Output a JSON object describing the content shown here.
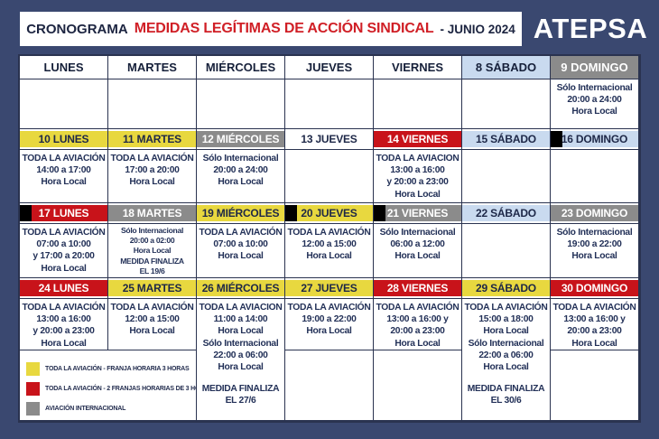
{
  "header": {
    "title_prefix": "CRONOGRAMA",
    "title_main": "MEDIDAS LEGÍTIMAS DE ACCIÓN SINDICAL",
    "title_suffix": "- JUNIO 2024",
    "brand": "ATEPSA"
  },
  "colors": {
    "frame_navy": "#3a4870",
    "grid_line": "#2a3350",
    "yellow": "#e8d83f",
    "red": "#c8131a",
    "gray": "#8b8b8b",
    "lightblue": "#c9daef",
    "black_marker": "#000000",
    "title_red": "#d01f26",
    "body_text_navy": "#233158"
  },
  "calendar": {
    "rows": [
      {
        "kind": "dayheader",
        "cells": [
          {
            "label": "LUNES",
            "color": "white"
          },
          {
            "label": "MARTES",
            "color": "white"
          },
          {
            "label": "MIÉRCOLES",
            "color": "white"
          },
          {
            "label": "JUEVES",
            "color": "white"
          },
          {
            "label": "VIERNES",
            "color": "white"
          },
          {
            "label": "8 SÁBADO",
            "color": "lightblue"
          },
          {
            "label": "9 DOMINGO",
            "color": "gray"
          }
        ]
      },
      {
        "kind": "body",
        "cells": [
          {
            "lines": []
          },
          {
            "lines": []
          },
          {
            "lines": []
          },
          {
            "lines": []
          },
          {
            "lines": []
          },
          {
            "lines": []
          },
          {
            "lines": [
              "Sólo Internacional",
              "20:00 a 24:00",
              "Hora Local"
            ]
          }
        ]
      },
      {
        "kind": "weekheader",
        "cells": [
          {
            "label": "10 LUNES",
            "color": "yellow"
          },
          {
            "label": "11 MARTES",
            "color": "yellow"
          },
          {
            "label": "12 MIÉRCOLES",
            "color": "gray"
          },
          {
            "label": "13 JUEVES",
            "color": "white"
          },
          {
            "label": "14 VIERNES",
            "color": "red"
          },
          {
            "label": "15 SÁBADO",
            "color": "lightblue"
          },
          {
            "label": "16 DOMINGO",
            "color": "lightblue",
            "marker": true
          }
        ]
      },
      {
        "kind": "body",
        "cells": [
          {
            "lines": [
              "TODA LA AVIACIÓN",
              "14:00 a 17:00",
              "Hora Local"
            ]
          },
          {
            "lines": [
              "TODA LA AVIACIÓN",
              "17:00 a 20:00",
              "Hora Local"
            ]
          },
          {
            "lines": [
              "Sólo Internacional",
              "20:00 a 24:00",
              "Hora Local"
            ]
          },
          {
            "lines": []
          },
          {
            "lines": [
              "TODA LA AVIACION",
              "13:00 a 16:00",
              "y 20:00 a 23:00",
              "Hora Local"
            ]
          },
          {
            "lines": []
          },
          {
            "lines": []
          }
        ]
      },
      {
        "kind": "weekheader",
        "cells": [
          {
            "label": "17 LUNES",
            "color": "red",
            "marker": true
          },
          {
            "label": "18 MARTES",
            "color": "gray"
          },
          {
            "label": "19 MIÉRCOLES",
            "color": "yellow"
          },
          {
            "label": "20 JUEVES",
            "color": "yellow",
            "marker": true
          },
          {
            "label": "21 VIERNES",
            "color": "gray",
            "marker": true
          },
          {
            "label": "22 SÁBADO",
            "color": "lightblue"
          },
          {
            "label": "23 DOMINGO",
            "color": "gray"
          }
        ]
      },
      {
        "kind": "body",
        "cells": [
          {
            "lines": [
              "TODA LA AVIACIÓN",
              "07:00 a 10:00",
              "y 17:00 a 20:00",
              "Hora Local"
            ]
          },
          {
            "lines": [
              "Sólo Internacional",
              "20:00 a 02:00",
              "Hora Local",
              "MEDIDA FINALIZA",
              "EL 19/6"
            ],
            "small": true
          },
          {
            "lines": [
              "TODA LA AVIACIÓN",
              "07:00 a 10:00",
              "Hora Local"
            ]
          },
          {
            "lines": [
              "TODA LA AVIACIÓN",
              "12:00 a 15:00",
              "Hora Local"
            ]
          },
          {
            "lines": [
              "Sólo Internacional",
              "06:00 a 12:00",
              "Hora Local"
            ]
          },
          {
            "lines": []
          },
          {
            "lines": [
              "Sólo Internacional",
              "19:00 a 22:00",
              "Hora Local"
            ]
          }
        ]
      },
      {
        "kind": "weekheader",
        "cells": [
          {
            "label": "24 LUNES",
            "color": "red"
          },
          {
            "label": "25 MARTES",
            "color": "yellow"
          },
          {
            "label": "26 MIÉRCOLES",
            "color": "yellow"
          },
          {
            "label": "27 JUEVES",
            "color": "yellow"
          },
          {
            "label": "28 VIERNES",
            "color": "red"
          },
          {
            "label": "29 SÁBADO",
            "color": "yellow"
          },
          {
            "label": "30 DOMINGO",
            "color": "red"
          }
        ]
      },
      {
        "kind": "body",
        "cells": [
          {
            "lines": [
              "TODA LA AVIACIÓN",
              "13:00 a 16:00",
              "y 20:00 a 23:00",
              "Hora Local"
            ]
          },
          {
            "lines": [
              "TODA LA AVIACIÓN",
              "12:00 a 15:00",
              "Hora Local"
            ]
          },
          {
            "lines": [
              "TODA LA AVIACION",
              "11:00 a 14:00",
              "Hora Local",
              "Sólo Internacional",
              "22:00 a 06:00",
              "Hora Local",
              "",
              "MEDIDA FINALIZA",
              "EL 27/6"
            ],
            "tall": true
          },
          {
            "lines": [
              "TODA LA AVIACIÓN",
              "19:00 a 22:00",
              "Hora Local"
            ]
          },
          {
            "lines": [
              "TODA LA AVIACIÓN",
              "13:00 a 16:00 y",
              "20:00 a 23:00",
              "Hora Local"
            ]
          },
          {
            "lines": [
              "TODA LA AVIACIÓN",
              "15:00 a 18:00",
              "Hora Local",
              "Sólo Internacional",
              "22:00 a 06:00",
              "Hora Local",
              "",
              "MEDIDA FINALIZA",
              "EL 30/6"
            ],
            "tall": true
          },
          {
            "lines": [
              "TODA LA AVIACIÓN",
              "13:00 a 16:00 y",
              "20:00 a 23:00",
              "Hora Local"
            ]
          }
        ]
      }
    ]
  },
  "legend": {
    "items": [
      {
        "color": "yellow",
        "label": "TODA LA AVIACIÓN - FRANJA HORARIA 3 HORAS"
      },
      {
        "color": "red",
        "label": "TODA LA AVIACIÓN - 2 FRANJAS HORARIAS DE 3 HORAS"
      },
      {
        "color": "gray",
        "label": "AVIACIÓN INTERNACIONAL"
      }
    ]
  }
}
